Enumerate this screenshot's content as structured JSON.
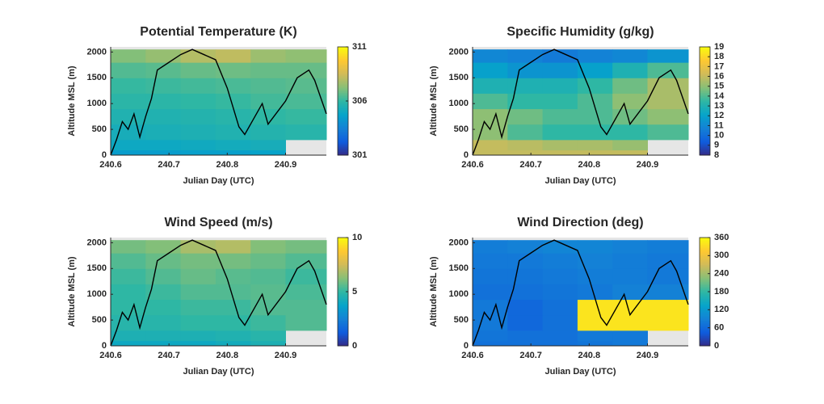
{
  "chart_data": [
    {
      "type": "heatmap",
      "title": "Potential Temperature (K)",
      "xlabel": "Julian Day (UTC)",
      "ylabel": "Altitude MSL (m)",
      "xlim": [
        240.6,
        240.97
      ],
      "xticks": [
        240.6,
        240.7,
        240.8,
        240.9
      ],
      "ylim": [
        0,
        2100
      ],
      "yticks": [
        0,
        500,
        1000,
        1500,
        2000
      ],
      "xbins": [
        240.6,
        240.66,
        240.72,
        240.78,
        240.84,
        240.9,
        240.97
      ],
      "ybins": [
        0,
        100,
        300,
        600,
        900,
        1200,
        1500,
        1800,
        2050
      ],
      "z": [
        [
          304.5,
          304.5,
          304.6,
          304.6,
          304.7,
          null
        ],
        [
          305,
          305,
          305.1,
          305.2,
          305.3,
          null
        ],
        [
          305.3,
          305.4,
          305.5,
          305.6,
          305.7,
          305.8
        ],
        [
          305.6,
          305.6,
          305.7,
          305.8,
          306,
          306.1
        ],
        [
          305.9,
          305.9,
          306,
          306.1,
          306.3,
          306.4
        ],
        [
          306.1,
          306.2,
          306.3,
          306.4,
          306.5,
          306.6
        ],
        [
          306.5,
          306.6,
          306.8,
          306.9,
          306.8,
          306.8
        ],
        [
          307.2,
          307.5,
          308,
          308.2,
          307.6,
          307.4
        ]
      ],
      "clim": [
        301,
        311
      ],
      "cticks": [
        301,
        306,
        311
      ],
      "track": {
        "x": [
          240.6,
          240.61,
          240.62,
          240.63,
          240.64,
          240.65,
          240.66,
          240.67,
          240.68,
          240.7,
          240.72,
          240.74,
          240.76,
          240.78,
          240.8,
          240.82,
          240.83,
          240.85,
          240.86,
          240.87,
          240.9,
          240.92,
          240.94,
          240.95,
          240.97
        ],
        "y": [
          0,
          300,
          650,
          500,
          800,
          350,
          750,
          1100,
          1650,
          1800,
          1950,
          2050,
          1950,
          1850,
          1300,
          550,
          400,
          800,
          1000,
          600,
          1050,
          1500,
          1650,
          1450,
          800
        ]
      }
    },
    {
      "type": "heatmap",
      "title": "Specific Humidity (g/kg)",
      "xlabel": "Julian Day (UTC)",
      "ylabel": "Altitude MSL (m)",
      "xlim": [
        240.6,
        240.97
      ],
      "xticks": [
        240.6,
        240.7,
        240.8,
        240.9
      ],
      "ylim": [
        0,
        2100
      ],
      "yticks": [
        0,
        500,
        1000,
        1500,
        2000
      ],
      "xbins": [
        240.6,
        240.66,
        240.72,
        240.78,
        240.84,
        240.9,
        240.97
      ],
      "ybins": [
        0,
        100,
        300,
        600,
        900,
        1200,
        1500,
        1800,
        2050
      ],
      "z": [
        [
          16,
          16,
          16,
          16,
          16,
          null
        ],
        [
          16,
          15.8,
          15.5,
          15.5,
          15.2,
          null
        ],
        [
          15,
          14,
          13.5,
          13.5,
          13.5,
          14
        ],
        [
          15,
          14.5,
          14,
          14,
          14.5,
          15
        ],
        [
          14,
          13.5,
          13.5,
          14,
          15,
          15.5
        ],
        [
          13,
          13,
          13,
          13.5,
          14.5,
          15.5
        ],
        [
          12,
          11.5,
          11.5,
          12,
          13,
          14
        ],
        [
          11,
          10.8,
          10.5,
          10.8,
          11,
          11.5
        ]
      ],
      "clim": [
        8,
        19
      ],
      "cticks": [
        8,
        9,
        10,
        11,
        12,
        13,
        14,
        15,
        16,
        17,
        18,
        19
      ],
      "track": {
        "x": [
          240.6,
          240.61,
          240.62,
          240.63,
          240.64,
          240.65,
          240.66,
          240.67,
          240.68,
          240.7,
          240.72,
          240.74,
          240.76,
          240.78,
          240.8,
          240.82,
          240.83,
          240.85,
          240.86,
          240.87,
          240.9,
          240.92,
          240.94,
          240.95,
          240.97
        ],
        "y": [
          0,
          300,
          650,
          500,
          800,
          350,
          750,
          1100,
          1650,
          1800,
          1950,
          2050,
          1950,
          1850,
          1300,
          550,
          400,
          800,
          1000,
          600,
          1050,
          1500,
          1650,
          1450,
          800
        ]
      }
    },
    {
      "type": "heatmap",
      "title": "Wind Speed (m/s)",
      "xlabel": "Julian Day (UTC)",
      "ylabel": "Altitude MSL (m)",
      "xlim": [
        240.6,
        240.97
      ],
      "xticks": [
        240.6,
        240.7,
        240.8,
        240.9
      ],
      "ylim": [
        0,
        2100
      ],
      "yticks": [
        0,
        500,
        1000,
        1500,
        2000
      ],
      "xbins": [
        240.6,
        240.66,
        240.72,
        240.78,
        240.84,
        240.9,
        240.97
      ],
      "ybins": [
        0,
        100,
        300,
        600,
        900,
        1200,
        1500,
        1800,
        2050
      ],
      "z": [
        [
          4,
          4,
          4,
          4.2,
          4.5,
          null
        ],
        [
          4.5,
          4.5,
          4.5,
          4.6,
          4.8,
          null
        ],
        [
          4.8,
          4.8,
          5,
          5,
          5.2,
          5.5
        ],
        [
          5,
          5,
          5.2,
          5.2,
          5.5,
          5.5
        ],
        [
          5,
          5.2,
          5.5,
          5.5,
          5.6,
          5.4
        ],
        [
          5.2,
          5.5,
          5.8,
          5.6,
          5.5,
          5.2
        ],
        [
          5.5,
          5.8,
          6,
          6,
          5.8,
          5.5
        ],
        [
          6,
          6.2,
          6.8,
          7,
          6.2,
          6
        ]
      ],
      "clim": [
        0,
        10
      ],
      "cticks": [
        0,
        5,
        10
      ],
      "track": {
        "x": [
          240.6,
          240.61,
          240.62,
          240.63,
          240.64,
          240.65,
          240.66,
          240.67,
          240.68,
          240.7,
          240.72,
          240.74,
          240.76,
          240.78,
          240.8,
          240.82,
          240.83,
          240.85,
          240.86,
          240.87,
          240.9,
          240.92,
          240.94,
          240.95,
          240.97
        ],
        "y": [
          0,
          300,
          650,
          500,
          800,
          350,
          750,
          1100,
          1650,
          1800,
          1950,
          2050,
          1950,
          1850,
          1300,
          550,
          400,
          800,
          1000,
          600,
          1050,
          1500,
          1650,
          1450,
          800
        ]
      }
    },
    {
      "type": "heatmap",
      "title": "Wind Direction (deg)",
      "xlabel": "Julian Day (UTC)",
      "ylabel": "Altitude MSL (m)",
      "xlim": [
        240.6,
        240.97
      ],
      "xticks": [
        240.6,
        240.7,
        240.8,
        240.9
      ],
      "ylim": [
        0,
        2100
      ],
      "yticks": [
        0,
        500,
        1000,
        1500,
        2000
      ],
      "xbins": [
        240.6,
        240.66,
        240.72,
        240.78,
        240.84,
        240.9,
        240.97
      ],
      "ybins": [
        0,
        100,
        300,
        600,
        900,
        1200,
        1500,
        1800,
        2050
      ],
      "z": [
        [
          70,
          70,
          70,
          75,
          80,
          null
        ],
        [
          75,
          70,
          70,
          80,
          80,
          null
        ],
        [
          80,
          60,
          70,
          340,
          340,
          340
        ],
        [
          80,
          60,
          70,
          340,
          340,
          340
        ],
        [
          70,
          70,
          75,
          80,
          90,
          90
        ],
        [
          75,
          75,
          80,
          85,
          85,
          80
        ],
        [
          80,
          80,
          85,
          90,
          85,
          80
        ],
        [
          85,
          90,
          95,
          95,
          90,
          85
        ]
      ],
      "clim": [
        0,
        360
      ],
      "cticks": [
        0,
        60,
        120,
        180,
        240,
        300,
        360
      ],
      "track": {
        "x": [
          240.6,
          240.61,
          240.62,
          240.63,
          240.64,
          240.65,
          240.66,
          240.67,
          240.68,
          240.7,
          240.72,
          240.74,
          240.76,
          240.78,
          240.8,
          240.82,
          240.83,
          240.85,
          240.86,
          240.87,
          240.9,
          240.92,
          240.94,
          240.95,
          240.97
        ],
        "y": [
          0,
          300,
          650,
          500,
          800,
          350,
          750,
          1100,
          1650,
          1800,
          1950,
          2050,
          1950,
          1850,
          1300,
          550,
          400,
          800,
          1000,
          600,
          1050,
          1500,
          1650,
          1450,
          800
        ]
      }
    }
  ]
}
